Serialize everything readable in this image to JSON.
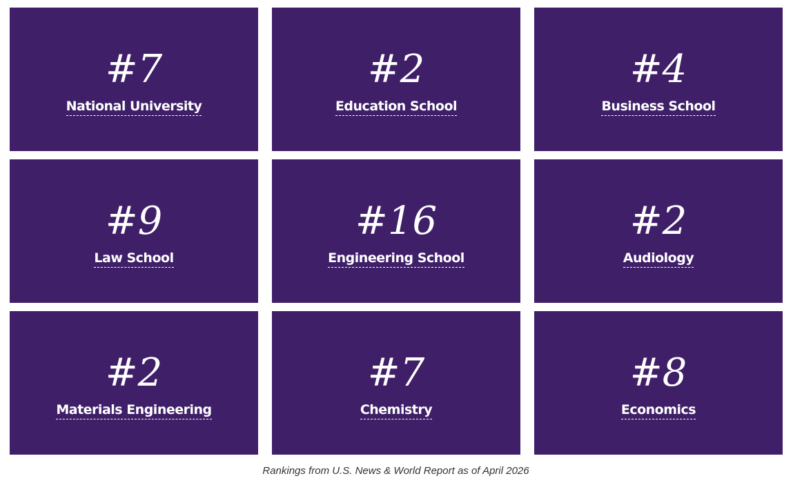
{
  "tiles": [
    {
      "rank": "#7",
      "label": "National University"
    },
    {
      "rank": "#2",
      "label": "Education School"
    },
    {
      "rank": "#4",
      "label": "Business School"
    },
    {
      "rank": "#9",
      "label": "Law School"
    },
    {
      "rank": "#16",
      "label": "Engineering School"
    },
    {
      "rank": "#2",
      "label": "Audiology"
    },
    {
      "rank": "#2",
      "label": "Materials Engineering"
    },
    {
      "rank": "#7",
      "label": "Chemistry"
    },
    {
      "rank": "#8",
      "label": "Economics"
    }
  ],
  "caption": "Rankings from U.S. News & World Report as of April 2026"
}
